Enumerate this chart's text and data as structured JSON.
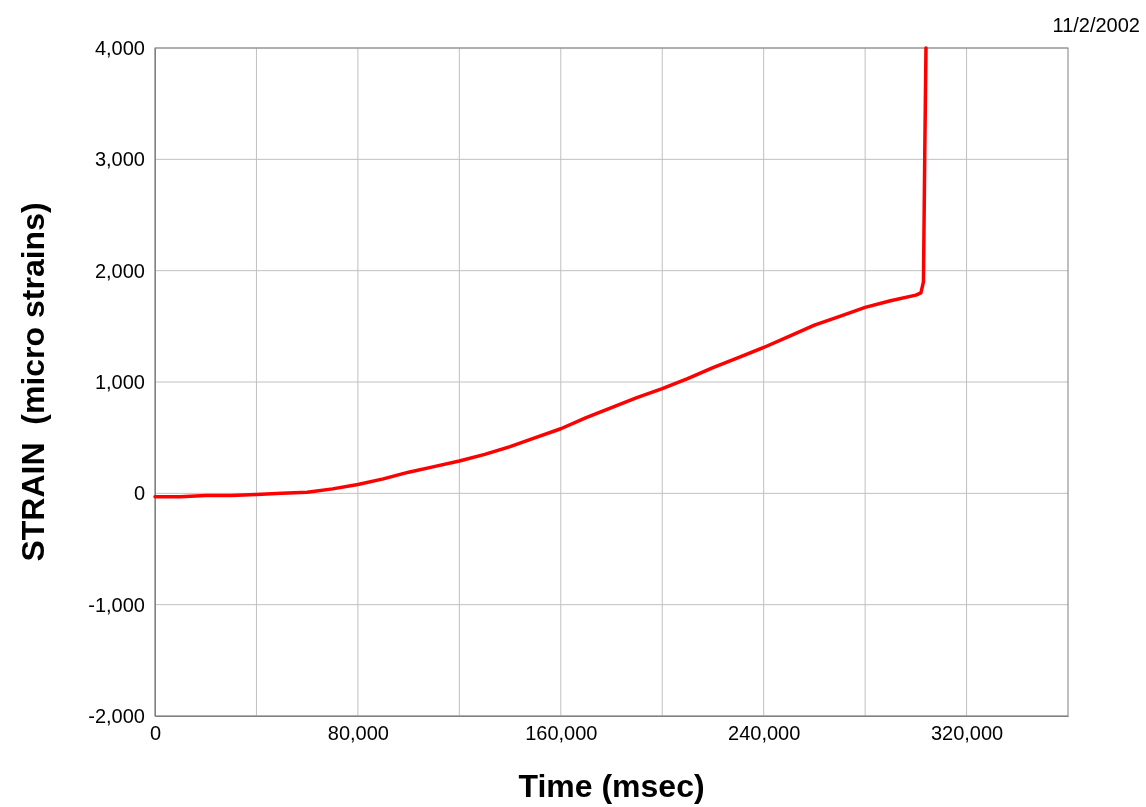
{
  "chart_data": {
    "type": "line",
    "xlabel": "Time (msec)",
    "ylabel": "STRAIN  (micro strains)",
    "annotations": [
      "11/2/2002"
    ],
    "xlim": [
      0,
      360000
    ],
    "ylim": [
      -2000,
      4000
    ],
    "xticks": [
      {
        "value": 0,
        "label": "0"
      },
      {
        "value": 40000,
        "label": null
      },
      {
        "value": 80000,
        "label": "80,000"
      },
      {
        "value": 120000,
        "label": null
      },
      {
        "value": 160000,
        "label": "160,000"
      },
      {
        "value": 200000,
        "label": null
      },
      {
        "value": 240000,
        "label": "240,000"
      },
      {
        "value": 280000,
        "label": null
      },
      {
        "value": 320000,
        "label": "320,000"
      }
    ],
    "yticks": [
      {
        "value": -2000,
        "label": "-2,000"
      },
      {
        "value": -1000,
        "label": "-1,000"
      },
      {
        "value": 0,
        "label": "0"
      },
      {
        "value": 1000,
        "label": "1,000"
      },
      {
        "value": 2000,
        "label": "2,000"
      },
      {
        "value": 3000,
        "label": "3,000"
      },
      {
        "value": 4000,
        "label": "4,000"
      }
    ],
    "grid": true,
    "marker": "none",
    "line_style": "solid",
    "series": [
      {
        "color": "#ff0000",
        "x": [
          0,
          10000,
          20000,
          30000,
          40000,
          50000,
          60000,
          70000,
          80000,
          90000,
          100000,
          110000,
          120000,
          130000,
          140000,
          150000,
          160000,
          170000,
          180000,
          190000,
          200000,
          210000,
          220000,
          230000,
          240000,
          250000,
          260000,
          270000,
          280000,
          290000,
          300000,
          302000,
          303000,
          303500,
          304000
        ],
        "values": [
          -30,
          -30,
          -20,
          -20,
          -10,
          0,
          10,
          40,
          80,
          130,
          190,
          240,
          290,
          350,
          420,
          500,
          580,
          680,
          770,
          860,
          940,
          1030,
          1130,
          1220,
          1310,
          1410,
          1510,
          1590,
          1670,
          1730,
          1780,
          1800,
          1900,
          3000,
          4000
        ]
      }
    ]
  }
}
